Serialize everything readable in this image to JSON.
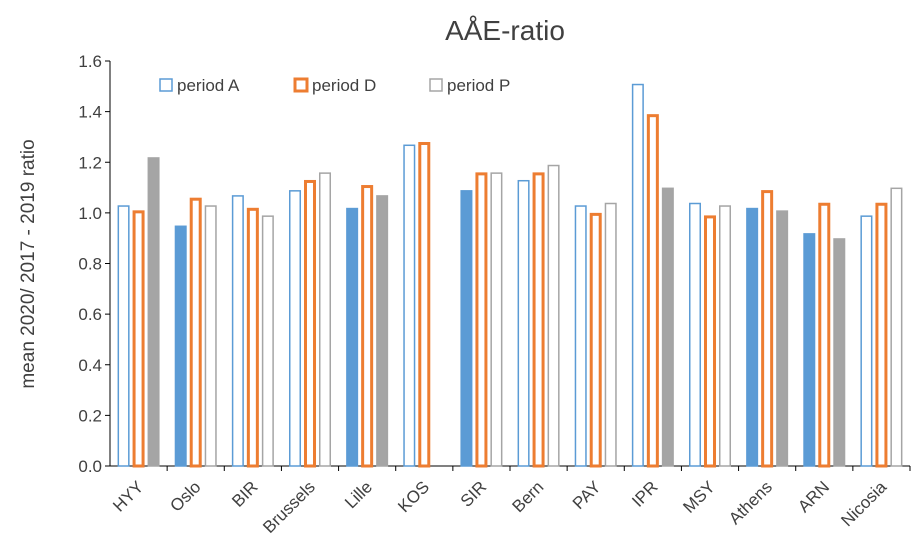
{
  "chart_data": {
    "type": "bar",
    "title": "AÅE-ratio",
    "ylabel": "mean 2020/ 2017 - 2019 ratio",
    "xlabel": "",
    "ylim": [
      0.0,
      1.6
    ],
    "yticks": [
      "0.0",
      "0.2",
      "0.4",
      "0.6",
      "0.8",
      "1.0",
      "1.2",
      "1.4",
      "1.6"
    ],
    "grid": false,
    "legend_position": "top-left",
    "categories": [
      "HYY",
      "Oslo",
      "BIR",
      "Brussels",
      "Lille",
      "KOS",
      "SIR",
      "Bern",
      "PAY",
      "IPR",
      "MSY",
      "Athens",
      "ARN",
      "Nicosia"
    ],
    "series": [
      {
        "name": "period A",
        "color": "#5B9BD5",
        "values": [
          1.03,
          0.95,
          1.07,
          1.09,
          1.02,
          1.27,
          1.09,
          1.13,
          1.03,
          1.51,
          1.04,
          1.02,
          0.92,
          0.99
        ],
        "filled": [
          false,
          true,
          false,
          false,
          true,
          false,
          true,
          false,
          false,
          false,
          false,
          true,
          true,
          false
        ]
      },
      {
        "name": "period D",
        "color": "#ED7D31",
        "values": [
          1.01,
          1.06,
          1.02,
          1.13,
          1.11,
          1.28,
          1.16,
          1.16,
          1.0,
          1.39,
          0.99,
          1.09,
          1.04,
          1.04
        ],
        "filled": [
          false,
          false,
          false,
          false,
          false,
          false,
          false,
          false,
          false,
          false,
          false,
          false,
          false,
          false
        ]
      },
      {
        "name": "period P",
        "color": "#A5A5A5",
        "values": [
          1.22,
          1.03,
          0.99,
          1.16,
          1.07,
          null,
          1.16,
          1.19,
          1.04,
          1.1,
          1.03,
          1.01,
          0.9,
          1.1
        ],
        "filled": [
          true,
          false,
          false,
          false,
          true,
          false,
          false,
          false,
          false,
          true,
          false,
          true,
          true,
          false
        ]
      }
    ]
  }
}
